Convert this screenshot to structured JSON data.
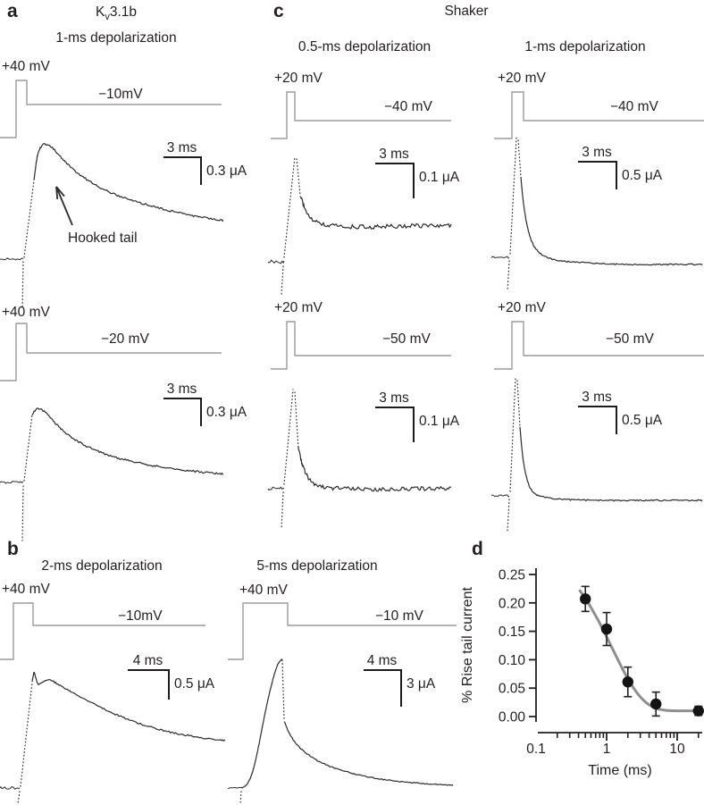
{
  "colors": {
    "trace": "#2b2b2b",
    "protocol": "#9b9b9b",
    "scalebar": "#1c1c1c",
    "text": "#231f20",
    "fit_curve": "#8f8f8f",
    "marker": "#141414",
    "background": "#ffffff"
  },
  "panels": {
    "a": {
      "label": "a",
      "title": {
        "pre": "K",
        "sub": "v",
        "post": "3.1b"
      },
      "sub": [
        {
          "title": "1-ms depolarization",
          "pulse_label": "+40 mV",
          "tail_label": "−10mV",
          "scale_time": "3 ms",
          "scale_amp": "0.3 μA",
          "annotation": "Hooked tail",
          "pulse_mV": 40,
          "tail_mV": -10,
          "pulse_ms": 1
        },
        {
          "pulse_label": "+40 mV",
          "tail_label": "−20 mV",
          "scale_time": "3 ms",
          "scale_amp": "0.3 μA",
          "pulse_mV": 40,
          "tail_mV": -20,
          "pulse_ms": 1
        }
      ]
    },
    "b": {
      "label": "b",
      "sub": [
        {
          "title": "2-ms depolarization",
          "pulse_label": "+40 mV",
          "tail_label": "−10mV",
          "scale_time": "4 ms",
          "scale_amp": "0.5 μA",
          "pulse_mV": 40,
          "tail_mV": -10,
          "pulse_ms": 2
        },
        {
          "title": "5-ms depolarization",
          "pulse_label": "+40 mV",
          "tail_label": "−10 mV",
          "scale_time": "4 ms",
          "scale_amp": "3 μA",
          "pulse_mV": 40,
          "tail_mV": -10,
          "pulse_ms": 5
        }
      ]
    },
    "c": {
      "label": "c",
      "title": "Shaker",
      "sub": [
        {
          "title": "0.5-ms depolarization",
          "pulse_label": "+20 mV",
          "tail_label": "−40 mV",
          "scale_time": "3 ms",
          "scale_amp": "0.1 μA",
          "pulse_mV": 20,
          "tail_mV": -40,
          "pulse_ms": 0.5
        },
        {
          "title": "1-ms depolarization",
          "pulse_label": "+20 mV",
          "tail_label": "−40 mV",
          "scale_time": "3 ms",
          "scale_amp": "0.5 μA",
          "pulse_mV": 20,
          "tail_mV": -40,
          "pulse_ms": 1
        },
        {
          "pulse_label": "+20 mV",
          "tail_label": "−50 mV",
          "scale_time": "3 ms",
          "scale_amp": "0.1 μA",
          "pulse_mV": 20,
          "tail_mV": -50,
          "pulse_ms": 0.5
        },
        {
          "pulse_label": "+20 mV",
          "tail_label": "−50 mV",
          "scale_time": "3 ms",
          "scale_amp": "0.5 μA",
          "pulse_mV": 20,
          "tail_mV": -50,
          "pulse_ms": 1
        }
      ]
    },
    "d": {
      "label": "d"
    }
  },
  "chart_data": {
    "type": "scatter",
    "title": "",
    "xlabel": "Time (ms)",
    "ylabel": "% Rise tail current",
    "xscale": "log",
    "xlim": [
      0.1,
      25
    ],
    "ylim": [
      0,
      0.25
    ],
    "xticks": [
      0.1,
      1,
      10
    ],
    "yticks": [
      0,
      0.05,
      0.1,
      0.15,
      0.2,
      0.25
    ],
    "x": [
      0.5,
      1,
      2,
      5,
      20
    ],
    "y": [
      0.207,
      0.154,
      0.061,
      0.022,
      0.01
    ],
    "yerr": [
      0.022,
      0.029,
      0.026,
      0.021,
      0.008
    ],
    "fit": {
      "model": "plateau + amplitude * exp(-t/tau)",
      "plateau": 0.01,
      "amplitude": 0.3,
      "tau_ms": 1.2
    },
    "grid": false,
    "legend": null
  },
  "trace_shapes": {
    "a1": {
      "seed": 11,
      "baseline": {
        "pts": [
          [
            0,
            142
          ],
          [
            26,
            142
          ]
        ],
        "noise": 1.3
      },
      "dotted": [
        [
          26,
          145,
          25,
          198
        ],
        [
          27,
          140,
          38,
          54
        ]
      ],
      "main": {
        "pts": [
          [
            38,
            54
          ],
          [
            42,
            26
          ],
          [
            47,
            15
          ],
          [
            53,
            14
          ],
          [
            60,
            19
          ],
          [
            70,
            30
          ],
          [
            85,
            44
          ],
          [
            105,
            58
          ],
          [
            130,
            70
          ],
          [
            160,
            80
          ],
          [
            195,
            89
          ],
          [
            225,
            95
          ],
          [
            250,
            99
          ]
        ],
        "noise": 1.0
      },
      "arrow": [
        81,
        104,
        63,
        61
      ]
    },
    "a2": {
      "seed": 22,
      "baseline": {
        "pts": [
          [
            0,
            120
          ],
          [
            26,
            120
          ]
        ],
        "noise": 1.3
      },
      "dotted": [
        [
          26,
          124,
          25,
          185
        ],
        [
          27,
          118,
          36,
          44
        ]
      ],
      "main": {
        "pts": [
          [
            36,
            44
          ],
          [
            40,
            39
          ],
          [
            45,
            38
          ],
          [
            52,
            43
          ],
          [
            62,
            54
          ],
          [
            78,
            68
          ],
          [
            100,
            81
          ],
          [
            130,
            92
          ],
          [
            165,
            100
          ],
          [
            205,
            106
          ],
          [
            250,
            111
          ]
        ],
        "noise": 1.1
      }
    },
    "c11": {
      "seed": 33,
      "baseline": {
        "pts": [
          [
            0,
            143
          ],
          [
            18,
            143
          ]
        ],
        "noise": 2.0
      },
      "dotted": [
        [
          17,
          148,
          15,
          180
        ],
        [
          18,
          138,
          30,
          25
        ],
        [
          32,
          28,
          36,
          68
        ]
      ],
      "main": {
        "pts": [
          [
            36,
            68
          ],
          [
            40,
            80
          ],
          [
            45,
            90
          ],
          [
            52,
            97
          ],
          [
            62,
            101
          ],
          [
            80,
            103
          ],
          [
            110,
            104
          ],
          [
            150,
            103
          ],
          [
            205,
            102
          ]
        ],
        "noise": 2.3
      }
    },
    "c12": {
      "seed": 44,
      "baseline": {
        "pts": [
          [
            0,
            148
          ],
          [
            20,
            148
          ]
        ],
        "noise": 0.9
      },
      "dotted": [
        [
          20,
          152,
          18,
          186
        ],
        [
          21,
          144,
          28,
          14
        ],
        [
          30,
          17,
          33,
          58
        ]
      ],
      "main": {
        "pts": [
          [
            33,
            58
          ],
          [
            36,
            88
          ],
          [
            40,
            112
          ],
          [
            45,
            130
          ],
          [
            52,
            141
          ],
          [
            62,
            148
          ],
          [
            78,
            152
          ],
          [
            105,
            154
          ],
          [
            150,
            156
          ],
          [
            200,
            156
          ],
          [
            236,
            156
          ]
        ],
        "noise": 0.7
      }
    },
    "c21": {
      "seed": 55,
      "baseline": {
        "pts": [
          [
            0,
            117
          ],
          [
            18,
            117
          ]
        ],
        "noise": 2.0
      },
      "dotted": [
        [
          17,
          121,
          15,
          162
        ],
        [
          18,
          112,
          28,
          6
        ],
        [
          30,
          9,
          34,
          72
        ]
      ],
      "main": {
        "pts": [
          [
            34,
            72
          ],
          [
            39,
            92
          ],
          [
            46,
            106
          ],
          [
            56,
            113
          ],
          [
            70,
            116
          ],
          [
            95,
            117
          ],
          [
            130,
            118
          ],
          [
            170,
            117
          ],
          [
            205,
            116
          ]
        ],
        "noise": 2.3
      }
    },
    "c22": {
      "seed": 66,
      "baseline": {
        "pts": [
          [
            0,
            135
          ],
          [
            20,
            135
          ]
        ],
        "noise": 1.0
      },
      "dotted": [
        [
          20,
          139,
          18,
          174
        ],
        [
          21,
          130,
          27,
          3
        ],
        [
          29,
          6,
          32,
          58
        ]
      ],
      "main": {
        "pts": [
          [
            32,
            58
          ],
          [
            35,
            90
          ],
          [
            39,
            113
          ],
          [
            44,
            127
          ],
          [
            51,
            134
          ],
          [
            62,
            137
          ],
          [
            82,
            139
          ],
          [
            120,
            140
          ],
          [
            170,
            140
          ],
          [
            236,
            140
          ]
        ],
        "noise": 0.7
      }
    },
    "b1": {
      "seed": 77,
      "baseline": {
        "pts": [
          [
            0,
            150
          ],
          [
            22,
            150
          ]
        ],
        "noise": 1.5
      },
      "dotted": [
        [
          22,
          154,
          20,
          168
        ],
        [
          23,
          148,
          36,
          32
        ]
      ],
      "main": {
        "pts": [
          [
            36,
            32
          ],
          [
            38,
            21
          ],
          [
            40,
            27
          ],
          [
            43,
            34
          ],
          [
            47,
            32
          ],
          [
            53,
            29
          ],
          [
            60,
            31
          ],
          [
            72,
            38
          ],
          [
            90,
            48
          ],
          [
            115,
            61
          ],
          [
            145,
            74
          ],
          [
            180,
            85
          ],
          [
            215,
            92
          ],
          [
            252,
            97
          ]
        ],
        "noise": 0.9
      }
    },
    "b2": {
      "seed": 88,
      "baseline": {
        "pts": [
          [
            0,
            152
          ],
          [
            16,
            152
          ]
        ],
        "noise": 1.0
      },
      "dotted": [
        [
          15,
          156,
          14,
          170
        ],
        [
          61,
          9,
          63,
          75
        ]
      ],
      "main": {
        "pts": [
          [
            16,
            152
          ],
          [
            22,
            147
          ],
          [
            27,
            136
          ],
          [
            32,
            117
          ],
          [
            37,
            92
          ],
          [
            43,
            62
          ],
          [
            49,
            36
          ],
          [
            54,
            19
          ],
          [
            58,
            10
          ],
          [
            61,
            8
          ]
        ],
        "noise": 0.5
      },
      "main2": {
        "pts": [
          [
            63,
            77
          ],
          [
            68,
            89
          ],
          [
            74,
            99
          ],
          [
            83,
            109
          ],
          [
            95,
            118
          ],
          [
            110,
            126
          ],
          [
            130,
            133
          ],
          [
            155,
            139
          ],
          [
            185,
            144
          ],
          [
            220,
            147
          ],
          [
            252,
            149
          ]
        ],
        "noise": 0.6
      }
    }
  }
}
